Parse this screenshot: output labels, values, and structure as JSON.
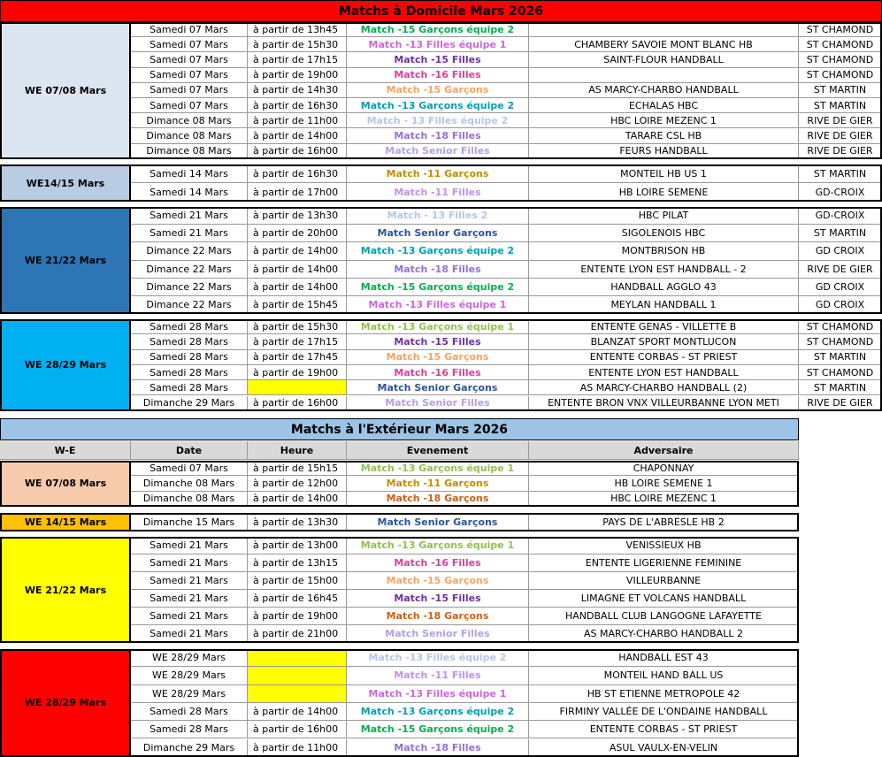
{
  "home": {
    "title": "Matchs à Domicile Mars 2026",
    "title_color": "#ff0000",
    "groups": [
      {
        "label": "WE 07/08 Mars",
        "color": "#dce6f1",
        "rows": [
          {
            "date": "Samedi 07 Mars",
            "heure": "à partir de 13h45",
            "evenement": "Match -15 Garçons équipe 2",
            "event_color": "#00b050",
            "adversaire": null,
            "lieu": "ST CHAMOND"
          },
          {
            "date": "Samedi 07 Mars",
            "heure": "à partir de 15h30",
            "evenement": "Match -13 Filles équipe 1",
            "event_color": "#cc66dd",
            "adversaire": "CHAMBERY SAVOIE MONT BLANC HB",
            "lieu": "ST CHAMOND"
          },
          {
            "date": "Samedi 07 Mars",
            "heure": "à partir de 17h15",
            "evenement": "Match -15 Filles",
            "event_color": "#7030a0",
            "adversaire": "SAINT-FLOUR HANDBALL",
            "lieu": "ST CHAMOND"
          },
          {
            "date": "Samedi 07 Mars",
            "heure": "à partir de 19h00",
            "evenement": "Match -16 Filles",
            "event_color": "#d9409a",
            "adversaire": null,
            "lieu": "ST CHAMOND"
          },
          {
            "date": "Samedi 07 Mars",
            "heure": "à partir de 14h30",
            "evenement": "Match -15 Garçons",
            "event_color": "#f4a460",
            "adversaire": "AS MARCY-CHARBO HANDBALL",
            "lieu": "ST MARTIN"
          },
          {
            "date": "Samedi 07 Mars",
            "heure": "à partir de 16h30",
            "evenement": "Match -13 Garçons équipe 2",
            "event_color": "#00a0b0",
            "adversaire": "ECHALAS HBC",
            "lieu": "ST MARTIN"
          },
          {
            "date": "Dimance 08 Mars",
            "heure": "à partir de 11h00",
            "evenement": "Match - 13 Filles équipe 2",
            "event_color": "#b4c6e7",
            "adversaire": "HBC LOIRE MEZENC 1",
            "lieu": "RIVE DE GIER"
          },
          {
            "date": "Dimance 08 Mars",
            "heure": "à partir de 14h00",
            "evenement": "Match -18 Filles",
            "event_color": "#9370db",
            "adversaire": "TARARE CSL HB",
            "lieu": "RIVE DE GIER"
          },
          {
            "date": "Dimance 08 Mars",
            "heure": "à partir de 16h00",
            "evenement": "Match Senior Filles",
            "event_color": "#b4a0e0",
            "adversaire": "FEURS HANDBALL",
            "lieu": "RIVE DE GIER"
          }
        ]
      },
      {
        "label": "WE14/15 Mars",
        "color": "#b8cce4",
        "rows": [
          {
            "date": "Samedi 14 Mars",
            "heure": "à partir de 16h30",
            "evenement": "Match -11 Garçons",
            "event_color": "#bf8f00",
            "adversaire": "MONTEIL HB US 1",
            "lieu": "ST MARTIN"
          },
          {
            "date": "Samedi 14 Mars",
            "heure": "à partir de 17h00",
            "evenement": "Match -11 Filles",
            "event_color": "#c090f0",
            "adversaire": "HB LOIRE SEMENE",
            "lieu": "GD-CROIX"
          }
        ]
      },
      {
        "label": "WE 21/22 Mars",
        "color": "#2e75b6",
        "rows": [
          {
            "date": "Samedi 21 Mars",
            "heure": "à partir de 13h30",
            "evenement": "Match - 13 Filles 2",
            "event_color": "#b4c6e7",
            "adversaire": "HBC PILAT",
            "lieu": "GD-CROIX"
          },
          {
            "date": "Samedi 21 Mars",
            "heure": "à partir de 20h00",
            "evenement": "Match Senior Garçons",
            "event_color": "#2f5597",
            "adversaire": "SIGOLENOIS HBC",
            "lieu": "ST MARTIN"
          },
          {
            "date": "Dimance 22 Mars",
            "heure": "à partir de 14h00",
            "evenement": "Match -13 Garçons équipe 2",
            "event_color": "#00a0b0",
            "adversaire": "MONTBRISON HB",
            "lieu": "GD CROIX"
          },
          {
            "date": "Dimance 22 Mars",
            "heure": "à partir de 14h00",
            "evenement": "Match -18 Filles",
            "event_color": "#9370db",
            "adversaire": "ENTENTE LYON EST HANDBALL - 2",
            "lieu": "RIVE DE GIER"
          },
          {
            "date": "Dimance 22 Mars",
            "heure": "à partir de 14h00",
            "evenement": "Match -15 Garçons équipe 2",
            "event_color": "#00b050",
            "adversaire": "HANDBALL AGGLO 43",
            "lieu": "GD CROIX"
          },
          {
            "date": "Dimance 22 Mars",
            "heure": "à partir de 15h45",
            "evenement": "Match -13 Filles équipe 1",
            "event_color": "#cc66dd",
            "adversaire": "MEYLAN HANDBALL 1",
            "lieu": "GD CROIX"
          }
        ]
      },
      {
        "label": "WE 28/29 Mars",
        "color": "#00b0f0",
        "rows": [
          {
            "date": "Samedi 28 Mars",
            "heure": "à partir de 15h30",
            "evenement": "Match -13 Garçons équipe 1",
            "event_color": "#92c050",
            "adversaire": "ENTENTE GENAS - VILLETTE B",
            "lieu": "ST CHAMOND"
          },
          {
            "date": "Samedi 28 Mars",
            "heure": "à partir de 17h15",
            "evenement": "Match -15 Filles",
            "event_color": "#7030a0",
            "adversaire": "BLANZAT SPORT MONTLUCON",
            "lieu": "ST CHAMOND"
          },
          {
            "date": "Samedi 28 Mars",
            "heure": "à partir de 17h45",
            "evenement": "Match -15 Garçons",
            "event_color": "#f4a460",
            "adversaire": "ENTENTE CORBAS - ST PRIEST",
            "lieu": "ST MARTIN"
          },
          {
            "date": "Samedi 28 Mars",
            "heure": "à partir de 19h00",
            "evenement": "Match -16 Filles",
            "event_color": "#d9409a",
            "adversaire": "ENTENTE LYON EST HANDBALL",
            "lieu": "ST CHAMOND"
          },
          {
            "date": "Samedi 28 Mars",
            "heure": null,
            "evenement": "Match Senior Garçons",
            "event_color": "#2f5597",
            "adversaire": "AS MARCY-CHARBO HANDBALL (2)",
            "lieu": "ST MARTIN"
          },
          {
            "date": "Dimanche 29 Mars",
            "heure": "à partir de 16h00",
            "evenement": "Match Senior Filles",
            "event_color": "#b4a0e0",
            "adversaire": "ENTENTE BRON VNX VILLEURBANNE LYON METI",
            "lieu": "RIVE DE GIER"
          }
        ]
      }
    ]
  },
  "away": {
    "title": "Matchs à l'Extérieur Mars 2026",
    "title_color": "#9dc3e6",
    "headers": [
      "W-E",
      "Date",
      "Heure",
      "Evenement",
      "Adversaire"
    ],
    "groups": [
      {
        "label": "WE 07/08 Mars",
        "color": "#f8cbad",
        "rows": [
          {
            "date": "Samedi 07 Mars",
            "heure": "à partir de 15h15",
            "evenement": "Match -13 Garçons équipe 1",
            "event_color": "#92c050",
            "adversaire": "CHAPONNAY"
          },
          {
            "date": "Dimanche 08 Mars",
            "heure": "à partir de 12h00",
            "evenement": "Match -11 Garçons",
            "event_color": "#bf8f00",
            "adversaire": "HB LOIRE SEMENE 1"
          },
          {
            "date": "Dimanche 08 Mars",
            "heure": "à partir de 14h00",
            "evenement": "Match -18 Garçons",
            "event_color": "#d06010",
            "adversaire": "HBC LOIRE MEZENC 1"
          }
        ]
      },
      {
        "label": "WE 14/15 Mars",
        "color": "#ffc000",
        "rows": [
          {
            "date": "Dimanche 15 Mars",
            "heure": "à partir de 13h30",
            "evenement": "Match Senior Garçons",
            "event_color": "#2f5597",
            "adversaire": "PAYS DE L'ABRESLE HB 2"
          }
        ]
      },
      {
        "label": "WE 21/22 Mars",
        "color": "#ffff00",
        "rows": [
          {
            "date": "Samedi 21 Mars",
            "heure": "à partir de 13h00",
            "evenement": "Match -13 Garçons équipe 1",
            "event_color": "#92c050",
            "adversaire": "VENISSIEUX HB"
          },
          {
            "date": "Samedi 21 Mars",
            "heure": "à partir de 13h15",
            "evenement": "Match -16 Filles",
            "event_color": "#d9409a",
            "adversaire": "ENTENTE LIGERIENNE FEMININE"
          },
          {
            "date": "Samedi 21 Mars",
            "heure": "à partir de 15h00",
            "evenement": "Match -15 Garçons",
            "event_color": "#f4a460",
            "adversaire": "VILLEURBANNE"
          },
          {
            "date": "Samedi 21 Mars",
            "heure": "à partir de 16h45",
            "evenement": "Match -15 Filles",
            "event_color": "#7030a0",
            "adversaire": "LIMAGNE ET VOLCANS HANDBALL"
          },
          {
            "date": "Samedi 21 Mars",
            "heure": "à partir de 19h00",
            "evenement": "Match -18 Garçons",
            "event_color": "#d06010",
            "adversaire": "HANDBALL CLUB LANGOGNE LAFAYETTE"
          },
          {
            "date": "Samedi 21 Mars",
            "heure": "à partir de 21h00",
            "evenement": "Match Senior Filles",
            "event_color": "#b4a0e0",
            "adversaire": "AS MARCY-CHARBO HANDBALL 2"
          }
        ]
      },
      {
        "label": "WE 28/29 Mars",
        "color": "#ff0000",
        "rows": [
          {
            "date": "WE 28/29 Mars",
            "heure": null,
            "evenement": "Match -13 Filles équipe 2",
            "event_color": "#b4c6e7",
            "adversaire": "HANDBALL EST 43"
          },
          {
            "date": "WE 28/29 Mars",
            "heure": null,
            "evenement": "Match -11 Filles",
            "event_color": "#c090f0",
            "adversaire": "MONTEIL HAND BALL US"
          },
          {
            "date": "WE 28/29 Mars",
            "heure": null,
            "evenement": "Match -13 Filles équipe 1",
            "event_color": "#cc66dd",
            "adversaire": "HB ST ETIENNE METROPOLE 42"
          },
          {
            "date": "Samedi 28 Mars",
            "heure": "à partir de 14h00",
            "evenement": "Match -13 Garçons équipe 2",
            "event_color": "#00a0b0",
            "adversaire": "FIRMINY VALLÉE DE L'ONDAINE HANDBALL"
          },
          {
            "date": "Samedi 28 Mars",
            "heure": "à partir de 16h00",
            "evenement": "Match -15 Garçons équipe 2",
            "event_color": "#00b050",
            "adversaire": "ENTENTE CORBAS - ST PRIEST"
          },
          {
            "date": "Dimanche 29 Mars",
            "heure": "à partir de 11h00",
            "evenement": "Match -18 Filles",
            "event_color": "#9370db",
            "adversaire": "ASUL VAULX-EN-VELIN"
          }
        ]
      }
    ]
  }
}
